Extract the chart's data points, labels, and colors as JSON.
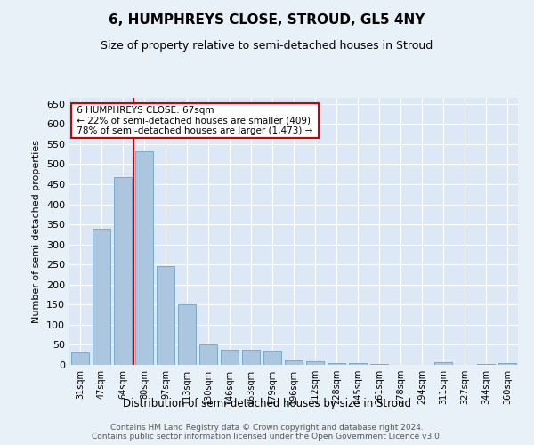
{
  "title": "6, HUMPHREYS CLOSE, STROUD, GL5 4NY",
  "subtitle": "Size of property relative to semi-detached houses in Stroud",
  "xlabel": "Distribution of semi-detached houses by size in Stroud",
  "ylabel": "Number of semi-detached properties",
  "categories": [
    "31sqm",
    "47sqm",
    "64sqm",
    "80sqm",
    "97sqm",
    "113sqm",
    "130sqm",
    "146sqm",
    "163sqm",
    "179sqm",
    "196sqm",
    "212sqm",
    "228sqm",
    "245sqm",
    "261sqm",
    "278sqm",
    "294sqm",
    "311sqm",
    "327sqm",
    "344sqm",
    "360sqm"
  ],
  "values": [
    30,
    340,
    468,
    533,
    245,
    150,
    50,
    37,
    37,
    35,
    12,
    8,
    5,
    5,
    3,
    0,
    0,
    7,
    0,
    3,
    5
  ],
  "bar_color": "#adc6df",
  "bar_edge_color": "#7aaac8",
  "property_line_x": 2.5,
  "property_line_label": "6 HUMPHREYS CLOSE: 67sqm",
  "smaller_pct": "22% of semi-detached houses are smaller (409)",
  "larger_pct": "78% of semi-detached houses are larger (1,473)",
  "annotation_box_color": "#ffffff",
  "annotation_box_edge": "#cc0000",
  "line_color": "#cc0000",
  "ylim": [
    0,
    665
  ],
  "yticks": [
    0,
    50,
    100,
    150,
    200,
    250,
    300,
    350,
    400,
    450,
    500,
    550,
    600,
    650
  ],
  "footer": "Contains HM Land Registry data © Crown copyright and database right 2024.\nContains public sector information licensed under the Open Government Licence v3.0.",
  "bg_color": "#e8f0f8",
  "plot_bg_color": "#dce8f5",
  "title_fontsize": 11,
  "subtitle_fontsize": 9,
  "footer_fontsize": 6.5
}
